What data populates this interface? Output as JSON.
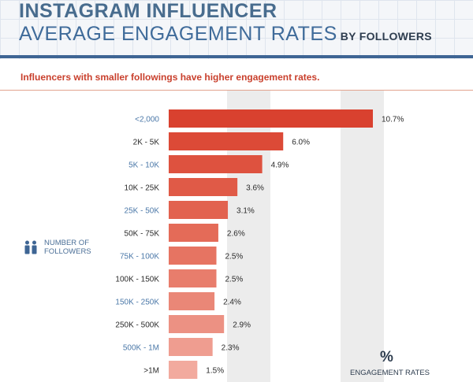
{
  "header": {
    "title_line1": "INSTAGRAM INFLUENCER",
    "title_line2": "AVERAGE ENGAGEMENT RATES",
    "title_suffix": "BY FOLLOWERS",
    "subtitle": "Influencers with smaller followings have higher engagement rates."
  },
  "legend": {
    "icon": "people-icon",
    "label": "NUMBER OF\nFOLLOWERS"
  },
  "axis": {
    "symbol": "%",
    "label": "ENGAGEMENT RATES"
  },
  "colors": {
    "title_dark": "#486c8e",
    "title_blue": "#3f6b9a",
    "accent_red": "#c9402d",
    "label_dark": "#2b2b2b",
    "label_blue": "#4b78a8",
    "band": "#ececec",
    "bars": [
      "#d9412f",
      "#dc4a37",
      "#de523f",
      "#e05a47",
      "#e2624f",
      "#e46b58",
      "#e67462",
      "#e87d6c",
      "#ea8777",
      "#ec9183",
      "#ef9d90",
      "#f2aa9e"
    ]
  },
  "chart_data": {
    "type": "bar",
    "orientation": "horizontal",
    "title": "INSTAGRAM INFLUENCER AVERAGE ENGAGEMENT RATES BY FOLLOWERS",
    "subtitle": "Influencers with smaller followings have higher engagement rates.",
    "ylabel": "NUMBER OF FOLLOWERS",
    "xlabel": "ENGAGEMENT RATES",
    "unit": "%",
    "categories": [
      "<2,000",
      "2K - 5K",
      "5K - 10K",
      "10K - 25K",
      "25K - 50K",
      "50K - 75K",
      "75K - 100K",
      "100K - 150K",
      "150K - 250K",
      "250K - 500K",
      "500K - 1M",
      ">1M"
    ],
    "values": [
      10.7,
      6.0,
      4.9,
      3.6,
      3.1,
      2.6,
      2.5,
      2.5,
      2.4,
      2.9,
      2.3,
      1.5
    ],
    "data_labels": [
      "10.7%",
      "6.0%",
      "4.9%",
      "3.6%",
      "3.1%",
      "2.6%",
      "2.5%",
      "2.5%",
      "2.4%",
      "2.9%",
      "2.3%",
      "1.5%"
    ],
    "xlim": [
      0,
      10.7
    ],
    "legend_position": "left"
  }
}
